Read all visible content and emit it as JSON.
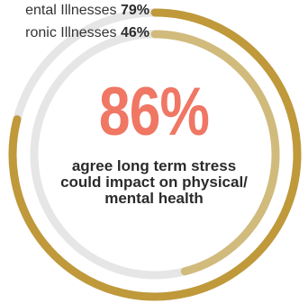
{
  "chart_data": {
    "type": "radial-bar",
    "series": [
      {
        "name": "Mental Illnesses",
        "label_text": "ental Illnesses",
        "value": 79,
        "value_text": "79%",
        "color": "#bf993a"
      },
      {
        "name": "Chronic Illnesses",
        "label_text": "ronic Illnesses",
        "value": 46,
        "value_text": "46%",
        "color": "#d1bb7c"
      }
    ],
    "track_color": "#e6e6e6",
    "headline": {
      "value": 86,
      "text": "86%",
      "color": "#ef7763"
    },
    "caption": "agree long term stress could impact on physical/ mental health"
  }
}
